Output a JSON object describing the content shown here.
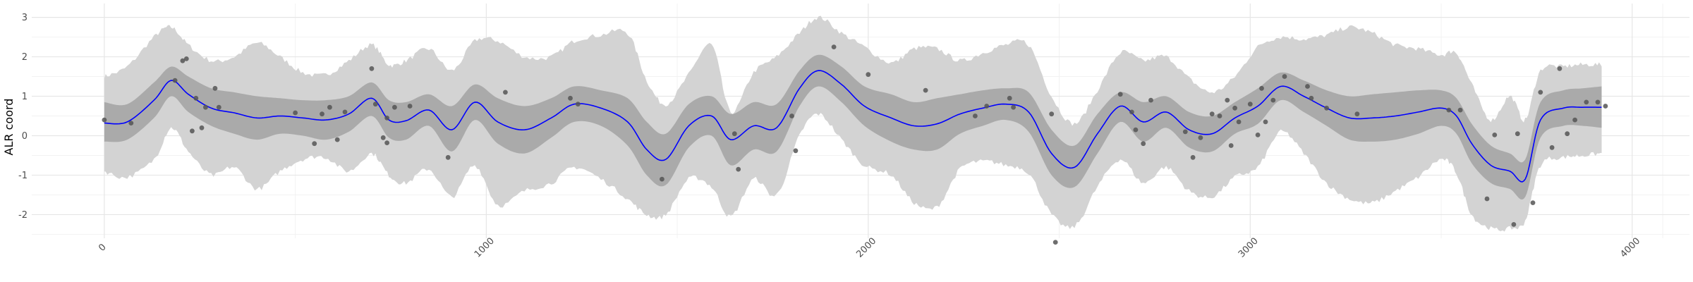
{
  "chart_data": {
    "type": "line",
    "title": "",
    "xlabel": "",
    "ylabel": "ALR coord",
    "xlim": [
      -190,
      4150
    ],
    "ylim": [
      -2.6,
      3.35
    ],
    "x_ticks": [
      0,
      1000,
      2000,
      3000,
      4000
    ],
    "x_tick_labels": [
      "0",
      "1000",
      "2000",
      "3000",
      "4000"
    ],
    "y_ticks": [
      -2,
      -1,
      0,
      1,
      2,
      3
    ],
    "y_tick_labels": [
      "-2",
      "-1",
      "0",
      "1",
      "2",
      "3"
    ],
    "grid": true,
    "legend": "none",
    "colors": {
      "mean_line": "#0000ff",
      "inner_band": "#aaaaaa",
      "outer_band": "#d3d3d3",
      "points": "#555555",
      "grid_major": "#e6e6e6",
      "grid_minor": "#f2f2f2"
    },
    "band_x": [
      0,
      60,
      130,
      175,
      220,
      280,
      340,
      400,
      460,
      520,
      580,
      640,
      700,
      745,
      790,
      850,
      910,
      970,
      1030,
      1100,
      1170,
      1230,
      1300,
      1370,
      1420,
      1470,
      1530,
      1590,
      1640,
      1700,
      1760,
      1820,
      1870,
      1930,
      1990,
      2060,
      2120,
      2180,
      2240,
      2300,
      2360,
      2420,
      2480,
      2540,
      2600,
      2660,
      2720,
      2780,
      2840,
      2900,
      2960,
      3020,
      3080,
      3140,
      3200,
      3260,
      3320,
      3380,
      3440,
      3500,
      3540,
      3580,
      3630,
      3680,
      3720,
      3760,
      3820,
      3870,
      3920
    ],
    "mean": [
      0.32,
      0.35,
      0.9,
      1.4,
      1.05,
      0.7,
      0.58,
      0.45,
      0.5,
      0.45,
      0.4,
      0.55,
      0.95,
      0.4,
      0.38,
      0.65,
      0.15,
      0.85,
      0.35,
      0.15,
      0.45,
      0.8,
      0.7,
      0.35,
      -0.35,
      -0.6,
      0.25,
      0.5,
      -0.1,
      0.25,
      0.2,
      1.2,
      1.65,
      1.3,
      0.75,
      0.45,
      0.25,
      0.3,
      0.55,
      0.7,
      0.8,
      0.6,
      -0.45,
      -0.8,
      0.05,
      0.75,
      0.35,
      0.6,
      0.15,
      0.05,
      0.45,
      0.75,
      1.25,
      1.0,
      0.7,
      0.45,
      0.45,
      0.5,
      0.6,
      0.7,
      0.5,
      -0.2,
      -0.75,
      -0.9,
      -1.1,
      0.4,
      0.7,
      0.72,
      0.72
    ],
    "inner_upper": [
      0.85,
      0.8,
      1.35,
      1.75,
      1.5,
      1.2,
      1.1,
      1.0,
      0.95,
      0.9,
      0.9,
      1.0,
      1.35,
      0.9,
      0.85,
      1.05,
      0.75,
      1.3,
      0.95,
      0.75,
      0.95,
      1.25,
      1.15,
      0.95,
      0.35,
      0.05,
      0.8,
      1.0,
      0.55,
      0.85,
      0.8,
      1.65,
      2.05,
      1.75,
      1.25,
      1.05,
      0.85,
      0.95,
      1.05,
      1.15,
      1.2,
      1.1,
      0.15,
      -0.25,
      0.55,
      1.1,
      0.85,
      1.0,
      0.6,
      0.5,
      0.85,
      1.2,
      1.6,
      1.4,
      1.15,
      1.0,
      1.05,
      1.1,
      1.15,
      1.15,
      0.95,
      0.3,
      -0.25,
      -0.45,
      -0.6,
      0.85,
      1.15,
      1.2,
      1.25
    ],
    "inner_lower": [
      -0.15,
      -0.1,
      0.45,
      1.0,
      0.6,
      0.25,
      0.05,
      -0.1,
      0.05,
      0.0,
      -0.1,
      0.1,
      0.5,
      -0.05,
      -0.1,
      0.25,
      -0.4,
      0.4,
      -0.2,
      -0.45,
      -0.05,
      0.35,
      0.25,
      -0.25,
      -1.0,
      -1.25,
      -0.3,
      0.0,
      -0.75,
      -0.35,
      -0.4,
      0.75,
      1.25,
      0.85,
      0.25,
      -0.15,
      -0.35,
      -0.35,
      0.05,
      0.25,
      0.4,
      0.1,
      -1.0,
      -1.3,
      -0.45,
      0.35,
      -0.15,
      0.2,
      -0.3,
      -0.4,
      0.05,
      0.3,
      0.9,
      0.6,
      0.25,
      -0.1,
      -0.15,
      -0.1,
      0.05,
      0.25,
      0.05,
      -0.7,
      -1.2,
      -1.35,
      -1.55,
      -0.05,
      0.25,
      0.25,
      0.2
    ],
    "outer_upper": [
      1.5,
      1.75,
      2.5,
      2.75,
      2.3,
      1.9,
      2.0,
      2.35,
      2.0,
      1.6,
      1.55,
      1.9,
      2.3,
      1.8,
      1.9,
      2.2,
      1.65,
      2.4,
      2.4,
      2.0,
      2.0,
      2.4,
      2.55,
      2.6,
      1.4,
      0.8,
      1.55,
      2.3,
      0.6,
      1.6,
      2.0,
      2.6,
      3.0,
      2.6,
      2.25,
      1.85,
      2.2,
      2.2,
      1.9,
      2.1,
      2.3,
      2.3,
      1.0,
      0.3,
      1.15,
      2.1,
      1.9,
      2.0,
      1.45,
      1.1,
      1.5,
      2.25,
      2.5,
      2.45,
      2.55,
      2.75,
      2.6,
      2.3,
      2.2,
      2.05,
      2.1,
      1.3,
      0.4,
      1.0,
      0.4,
      1.65,
      1.75,
      1.8,
      1.8
    ],
    "outer_lower": [
      -0.9,
      -1.05,
      -0.6,
      0.2,
      -0.4,
      -1.0,
      -0.8,
      -1.35,
      -0.9,
      -0.6,
      -0.55,
      -0.9,
      -0.45,
      -1.0,
      -1.2,
      -0.85,
      -1.55,
      -0.75,
      -1.75,
      -1.4,
      -1.2,
      -0.8,
      -1.1,
      -1.6,
      -2.0,
      -2.0,
      -1.1,
      -1.3,
      -2.05,
      -1.1,
      -1.5,
      0.0,
      0.55,
      -0.1,
      -0.75,
      -1.0,
      -1.7,
      -1.8,
      -0.85,
      -0.65,
      -0.75,
      -0.95,
      -2.0,
      -2.3,
      -1.3,
      -0.6,
      -1.2,
      -0.8,
      -1.4,
      -1.55,
      -1.05,
      -0.8,
      0.1,
      -0.45,
      -1.2,
      -1.6,
      -1.7,
      -1.4,
      -1.05,
      -0.6,
      -0.95,
      -2.0,
      -2.35,
      -2.35,
      -2.15,
      -0.75,
      -0.55,
      -0.5,
      -0.45
    ],
    "points": [
      [
        0,
        0.4
      ],
      [
        70,
        0.32
      ],
      [
        185,
        1.4
      ],
      [
        205,
        1.9
      ],
      [
        215,
        1.95
      ],
      [
        230,
        0.12
      ],
      [
        240,
        0.95
      ],
      [
        255,
        0.2
      ],
      [
        265,
        0.72
      ],
      [
        290,
        1.2
      ],
      [
        300,
        0.72
      ],
      [
        500,
        0.58
      ],
      [
        550,
        -0.2
      ],
      [
        570,
        0.55
      ],
      [
        590,
        0.72
      ],
      [
        610,
        -0.1
      ],
      [
        630,
        0.6
      ],
      [
        700,
        1.7
      ],
      [
        710,
        0.8
      ],
      [
        730,
        -0.05
      ],
      [
        740,
        0.45
      ],
      [
        740,
        -0.18
      ],
      [
        760,
        0.72
      ],
      [
        800,
        0.75
      ],
      [
        900,
        -0.55
      ],
      [
        1050,
        1.1
      ],
      [
        1220,
        0.95
      ],
      [
        1240,
        0.8
      ],
      [
        1460,
        -1.1
      ],
      [
        1650,
        0.05
      ],
      [
        1660,
        -0.85
      ],
      [
        1800,
        0.5
      ],
      [
        1810,
        -0.38
      ],
      [
        1910,
        2.25
      ],
      [
        2000,
        1.55
      ],
      [
        2150,
        1.15
      ],
      [
        2280,
        0.5
      ],
      [
        2310,
        0.75
      ],
      [
        2370,
        0.95
      ],
      [
        2380,
        0.72
      ],
      [
        2480,
        0.55
      ],
      [
        2490,
        -2.7
      ],
      [
        2660,
        1.05
      ],
      [
        2690,
        0.6
      ],
      [
        2700,
        0.15
      ],
      [
        2720,
        -0.2
      ],
      [
        2740,
        0.9
      ],
      [
        2830,
        0.1
      ],
      [
        2850,
        -0.55
      ],
      [
        2870,
        -0.05
      ],
      [
        2900,
        0.55
      ],
      [
        2920,
        0.5
      ],
      [
        2940,
        0.9
      ],
      [
        2950,
        -0.25
      ],
      [
        2960,
        0.7
      ],
      [
        2970,
        0.35
      ],
      [
        3000,
        0.8
      ],
      [
        3020,
        0.02
      ],
      [
        3030,
        1.2
      ],
      [
        3040,
        0.35
      ],
      [
        3060,
        0.9
      ],
      [
        3090,
        1.5
      ],
      [
        3150,
        1.25
      ],
      [
        3160,
        0.95
      ],
      [
        3200,
        0.7
      ],
      [
        3280,
        0.55
      ],
      [
        3520,
        0.65
      ],
      [
        3550,
        0.65
      ],
      [
        3620,
        -1.6
      ],
      [
        3640,
        0.02
      ],
      [
        3690,
        -2.25
      ],
      [
        3700,
        0.05
      ],
      [
        3740,
        -1.7
      ],
      [
        3760,
        1.1
      ],
      [
        3790,
        -0.3
      ],
      [
        3810,
        1.7
      ],
      [
        3830,
        0.05
      ],
      [
        3850,
        0.4
      ],
      [
        3880,
        0.85
      ],
      [
        3910,
        0.85
      ],
      [
        3930,
        0.75
      ]
    ]
  }
}
